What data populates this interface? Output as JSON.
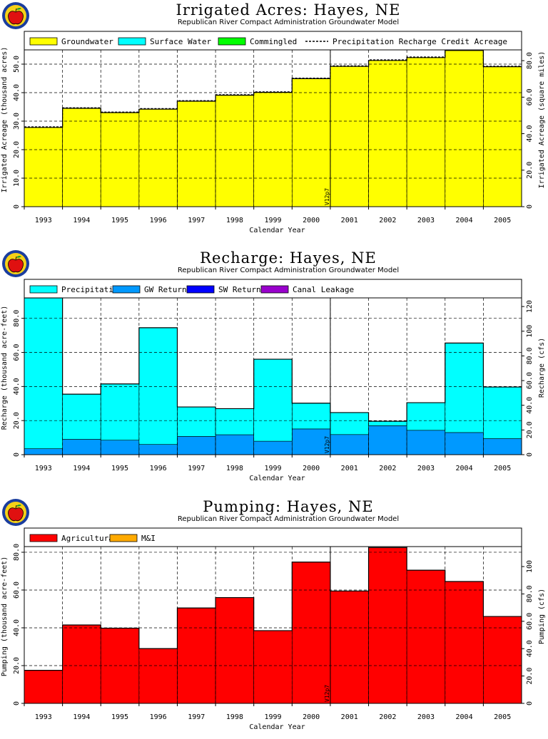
{
  "chart_data": [
    {
      "type": "bar",
      "title": "Irrigated Acres: Hayes, NE",
      "subtitle": "Republican River Compact Administration Groundwater Model",
      "xlabel": "Calendar Year",
      "ylabel": "Irrigated Acreage (thousand acres)",
      "y2label": "Irrigated Acreage (square miles)",
      "categories": [
        "1993",
        "1994",
        "1995",
        "1996",
        "1997",
        "1998",
        "1999",
        "2000",
        "2001",
        "2002",
        "2003",
        "2004",
        "2005"
      ],
      "ylim": [
        0,
        55
      ],
      "yticks": [
        "0",
        "10.0",
        "20.0",
        "30.0",
        "40.0",
        "50.0"
      ],
      "y2lim": [
        0,
        85.9
      ],
      "y2ticks": [
        "0",
        "20.0",
        "40.0",
        "60.0",
        "80.0"
      ],
      "grid": true,
      "legend_position": "top",
      "annotation": "V12p7",
      "series": [
        {
          "name": "Groundwater",
          "color": "#ffff00",
          "values": [
            27.8,
            34.5,
            33.0,
            34.2,
            37.0,
            39.1,
            40.1,
            44.9,
            49.2,
            51.3,
            52.3,
            54.8,
            49.1
          ]
        },
        {
          "name": "Surface Water",
          "color": "#00ffff",
          "values": [
            0,
            0,
            0,
            0,
            0,
            0,
            0,
            0,
            0,
            0,
            0,
            0,
            0
          ]
        },
        {
          "name": "Commingled",
          "color": "#00ff00",
          "values": [
            0,
            0,
            0,
            0,
            0,
            0,
            0,
            0,
            0,
            0,
            0,
            0,
            0
          ]
        }
      ],
      "line_series": {
        "name": "Precipitation Recharge Credit Acreage",
        "values": [
          28.0,
          34.7,
          33.2,
          34.4,
          37.2,
          39.3,
          40.3,
          45.1,
          49.4,
          51.5,
          52.5,
          55.0,
          49.3
        ]
      }
    },
    {
      "type": "bar",
      "title": "Recharge: Hayes, NE",
      "subtitle": "Republican River Compact Administration Groundwater Model",
      "xlabel": "Calendar Year",
      "ylabel": "Recharge (thousand acre-feet)",
      "y2label": "Recharge (cfs)",
      "categories": [
        "1993",
        "1994",
        "1995",
        "1996",
        "1997",
        "1998",
        "1999",
        "2000",
        "2001",
        "2002",
        "2003",
        "2004",
        "2005"
      ],
      "ylim": [
        0,
        92
      ],
      "yticks": [
        "0",
        "20.0",
        "40.0",
        "60.0",
        "80.0"
      ],
      "y2lim": [
        0,
        127
      ],
      "y2ticks": [
        "0",
        "20.0",
        "40.0",
        "60.0",
        "80.0",
        "100",
        "120"
      ],
      "grid": true,
      "legend_position": "top",
      "annotation": "V12p7",
      "series": [
        {
          "name": "GW Returns",
          "color": "#0099ff",
          "values": [
            3.5,
            9.0,
            8.5,
            6.0,
            10.7,
            11.7,
            7.9,
            15.1,
            11.8,
            17.0,
            14.3,
            13.0,
            9.4
          ]
        },
        {
          "name": "Precipitation",
          "color": "#00ffff",
          "values": [
            88.5,
            26.5,
            33.0,
            68.5,
            17.3,
            15.3,
            48.1,
            15.1,
            12.9,
            2.6,
            16.2,
            52.5,
            30.3
          ]
        },
        {
          "name": "SW Returns",
          "color": "#0000ff",
          "values": [
            0,
            0,
            0,
            0,
            0,
            0,
            0,
            0,
            0,
            0,
            0,
            0,
            0
          ]
        },
        {
          "name": "Canal Leakage",
          "color": "#9900cc",
          "values": [
            0,
            0,
            0,
            0,
            0,
            0,
            0,
            0,
            0,
            0,
            0,
            0,
            0
          ]
        }
      ]
    },
    {
      "type": "bar",
      "title": "Pumping: Hayes, NE",
      "subtitle": "Republican River Compact Administration Groundwater Model",
      "xlabel": "Calendar Year",
      "ylabel": "Pumping (thousand acre-feet)",
      "y2label": "Pumping (cfs)",
      "categories": [
        "1993",
        "1994",
        "1995",
        "1996",
        "1997",
        "1998",
        "1999",
        "2000",
        "2001",
        "2002",
        "2003",
        "2004",
        "2005"
      ],
      "ylim": [
        0,
        83
      ],
      "yticks": [
        "0",
        "20.0",
        "40.0",
        "60.0",
        "80.0"
      ],
      "y2lim": [
        0,
        114.6
      ],
      "y2ticks": [
        "0",
        "20.0",
        "40.0",
        "60.0",
        "80.0",
        "100"
      ],
      "grid": true,
      "legend_position": "top",
      "annotation": "V12p7",
      "series": [
        {
          "name": "Agricultural",
          "color": "#ff0000",
          "values": [
            17.5,
            41.5,
            39.8,
            29.0,
            50.5,
            56.0,
            38.5,
            74.8,
            59.5,
            82.5,
            70.5,
            64.5,
            46.0
          ]
        },
        {
          "name": "M&I",
          "color": "#ffaa00",
          "values": [
            0,
            0,
            0,
            0,
            0,
            0,
            0,
            0,
            0,
            0,
            0,
            0,
            0
          ]
        }
      ]
    }
  ]
}
